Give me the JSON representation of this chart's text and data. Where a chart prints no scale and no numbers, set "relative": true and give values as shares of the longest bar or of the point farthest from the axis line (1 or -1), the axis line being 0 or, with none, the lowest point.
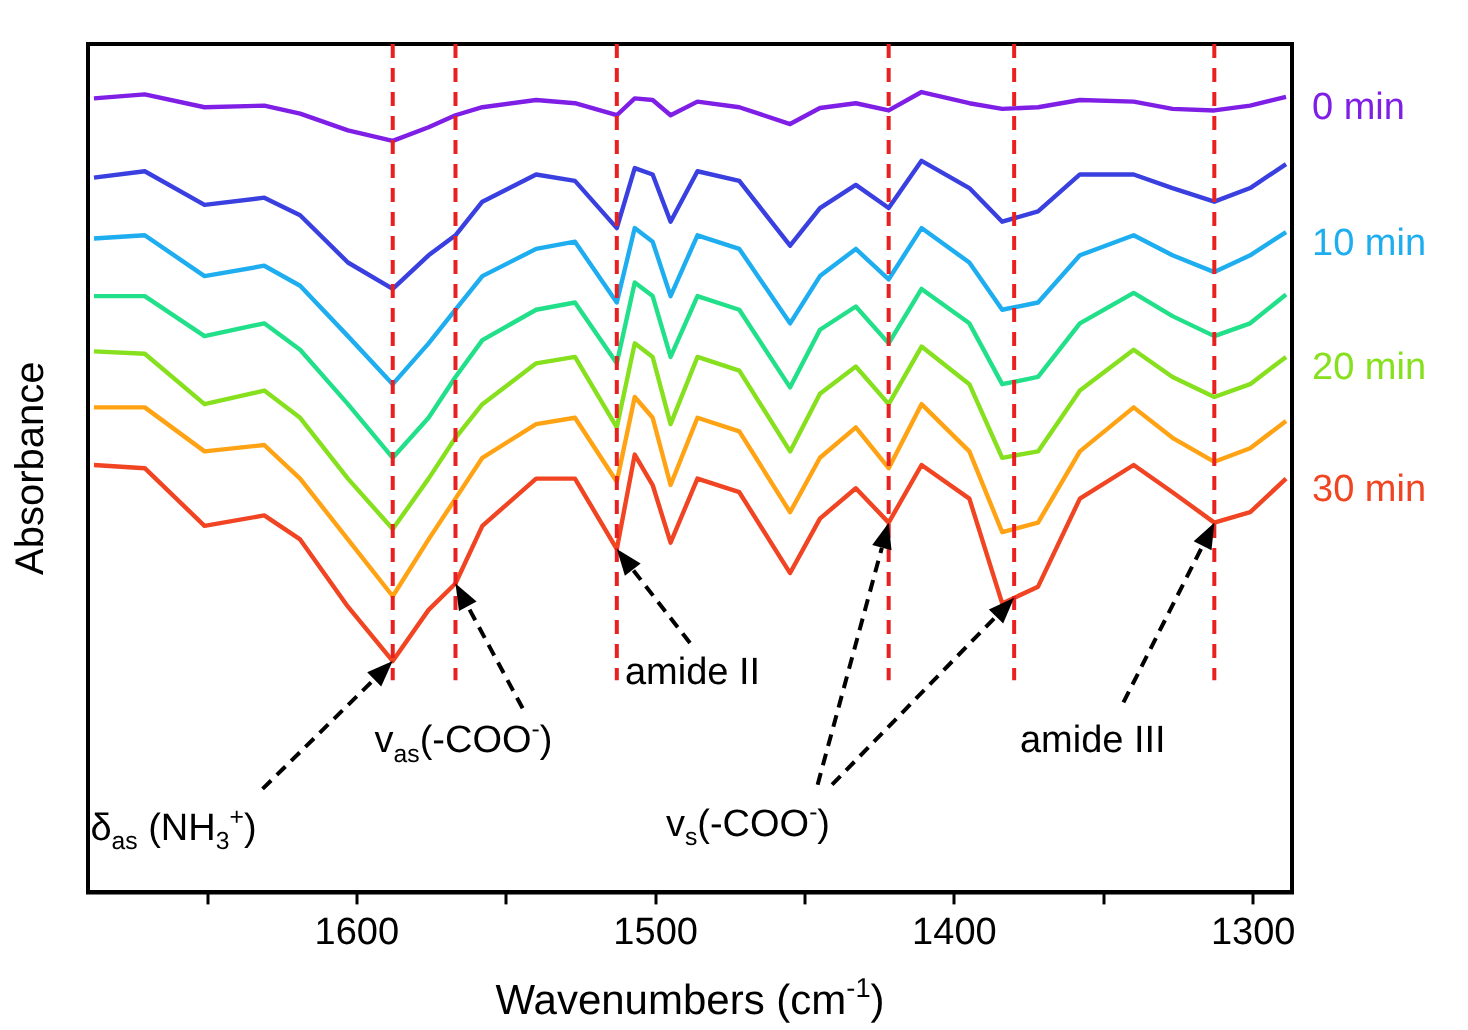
{
  "chart_data": {
    "type": "line",
    "xlabel": "Wavenumbers (cm$^{-1}$)",
    "ylabel": "Absorbance",
    "relative": true,
    "legend": false,
    "grid": false,
    "marker": "none",
    "line_style": "solid",
    "xlim": [
      1690,
      1287
    ],
    "xticks": [
      {
        "value": 1650,
        "label": null
      },
      1600,
      {
        "value": 1550,
        "label": null
      },
      1500,
      {
        "value": 1450,
        "label": null
      },
      1400,
      {
        "value": 1350,
        "label": null
      },
      1300
    ],
    "x": [
      1688,
      1671,
      1651,
      1631,
      1619,
      1603,
      1588,
      1576,
      1567,
      1558,
      1540,
      1527,
      1513,
      1507,
      1501,
      1495,
      1486,
      1472,
      1455,
      1445,
      1433,
      1422,
      1411,
      1395,
      1384,
      1372,
      1358,
      1340,
      1327,
      1313,
      1301,
      1289
    ],
    "series": [
      {
        "name": "0 min",
        "color": "#7f1fe6",
        "values": [
          0.992,
          0.997,
          0.981,
          0.983,
          0.973,
          0.952,
          0.939,
          0.956,
          0.971,
          0.981,
          0.99,
          0.986,
          0.971,
          0.992,
          0.99,
          0.971,
          0.988,
          0.981,
          0.96,
          0.98,
          0.986,
          0.977,
          1,
          0.986,
          0.979,
          0.981,
          0.99,
          0.988,
          0.979,
          0.977,
          0.983,
          0.994
        ]
      },
      {
        "color": "#3a40e0",
        "values": [
          0.893,
          0.901,
          0.859,
          0.868,
          0.846,
          0.787,
          0.754,
          0.796,
          0.821,
          0.863,
          0.897,
          0.889,
          0.83,
          0.905,
          0.897,
          0.838,
          0.901,
          0.889,
          0.808,
          0.855,
          0.884,
          0.855,
          0.914,
          0.88,
          0.838,
          0.851,
          0.897,
          0.897,
          0.88,
          0.863,
          0.88,
          0.91
        ]
      },
      {
        "name": "10 min",
        "color": "#1eaef0",
        "values": [
          0.817,
          0.821,
          0.77,
          0.783,
          0.758,
          0.695,
          0.635,
          0.686,
          0.728,
          0.77,
          0.804,
          0.813,
          0.737,
          0.83,
          0.813,
          0.745,
          0.821,
          0.804,
          0.711,
          0.77,
          0.804,
          0.766,
          0.83,
          0.787,
          0.728,
          0.737,
          0.796,
          0.821,
          0.796,
          0.775,
          0.796,
          0.825
        ]
      },
      {
        "color": "#22e08a",
        "values": [
          0.745,
          0.745,
          0.695,
          0.711,
          0.678,
          0.61,
          0.543,
          0.593,
          0.644,
          0.69,
          0.728,
          0.737,
          0.661,
          0.762,
          0.745,
          0.669,
          0.745,
          0.728,
          0.631,
          0.703,
          0.732,
          0.686,
          0.754,
          0.711,
          0.635,
          0.644,
          0.711,
          0.749,
          0.72,
          0.695,
          0.711,
          0.747
        ]
      },
      {
        "name": "20 min",
        "color": "#86e01e",
        "values": [
          0.676,
          0.673,
          0.61,
          0.627,
          0.593,
          0.517,
          0.454,
          0.517,
          0.568,
          0.61,
          0.661,
          0.669,
          0.581,
          0.686,
          0.669,
          0.585,
          0.669,
          0.652,
          0.551,
          0.623,
          0.657,
          0.61,
          0.682,
          0.635,
          0.543,
          0.551,
          0.627,
          0.678,
          0.644,
          0.619,
          0.635,
          0.669
        ]
      },
      {
        "color": "#ffa314",
        "values": [
          0.606,
          0.606,
          0.551,
          0.559,
          0.517,
          0.441,
          0.37,
          0.441,
          0.492,
          0.543,
          0.585,
          0.593,
          0.513,
          0.619,
          0.593,
          0.509,
          0.593,
          0.576,
          0.475,
          0.543,
          0.581,
          0.53,
          0.61,
          0.551,
          0.45,
          0.462,
          0.551,
          0.606,
          0.568,
          0.538,
          0.555,
          0.589
        ]
      },
      {
        "name": "30 min",
        "color": "#f04422",
        "values": [
          0.534,
          0.53,
          0.458,
          0.471,
          0.441,
          0.357,
          0.289,
          0.353,
          0.386,
          0.458,
          0.517,
          0.517,
          0.429,
          0.547,
          0.509,
          0.437,
          0.517,
          0.5,
          0.399,
          0.467,
          0.505,
          0.462,
          0.534,
          0.492,
          0.361,
          0.382,
          0.492,
          0.534,
          0.5,
          0.462,
          0.475,
          0.517
        ]
      }
    ],
    "ref_lines": [
      {
        "axis": "x",
        "value": 1588,
        "color": "#e82020",
        "line_style": "dashed"
      },
      {
        "axis": "x",
        "value": 1567,
        "color": "#e82020",
        "line_style": "dashed"
      },
      {
        "axis": "x",
        "value": 1513,
        "color": "#e82020",
        "line_style": "dashed"
      },
      {
        "axis": "x",
        "value": 1422,
        "color": "#e82020",
        "line_style": "dashed"
      },
      {
        "axis": "x",
        "value": 1380,
        "color": "#e82020",
        "line_style": "dashed"
      },
      {
        "axis": "x",
        "value": 1313,
        "color": "#e82020",
        "line_style": "dashed"
      }
    ],
    "annotations": [
      "δ$_{as}$ (NH$_{3}$$^{+}$)",
      "v$_{as}$(-COO$^{-}$)",
      "amide II",
      "v$_{s}$(-COO$^{-}$)",
      "amide III"
    ]
  }
}
